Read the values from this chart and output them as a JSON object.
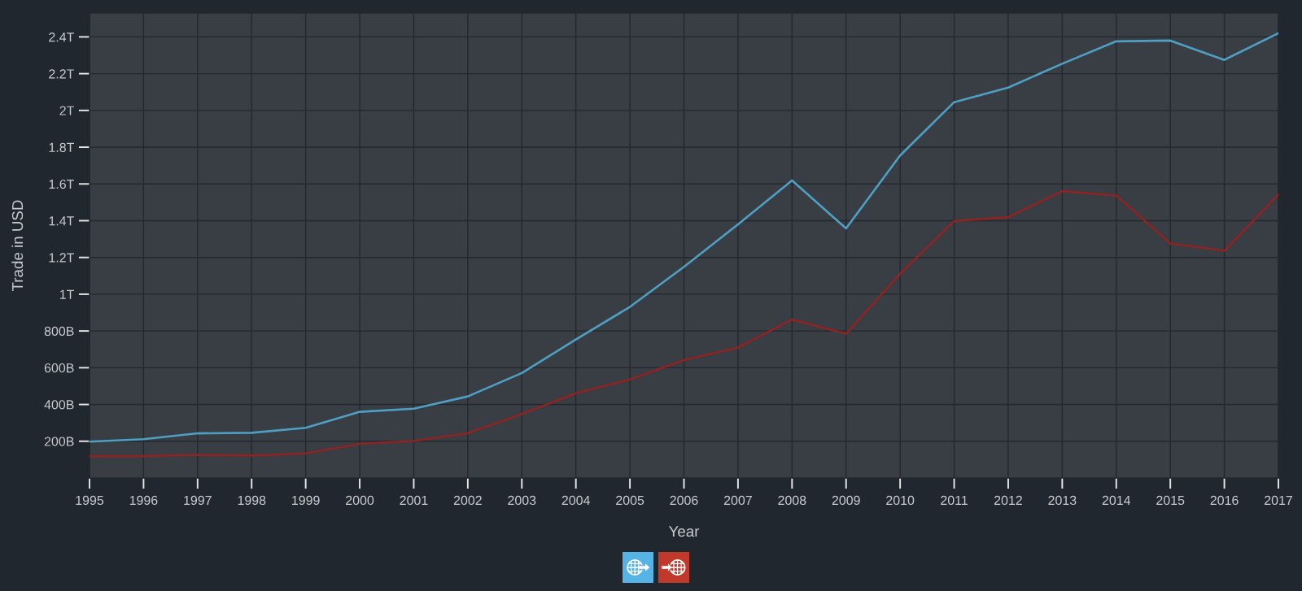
{
  "chart_data": {
    "type": "line",
    "xlabel": "Year",
    "ylabel": "Trade in USD",
    "x": [
      1995,
      1996,
      1997,
      1998,
      1999,
      2000,
      2001,
      2002,
      2003,
      2004,
      2005,
      2006,
      2007,
      2008,
      2009,
      2010,
      2011,
      2012,
      2013,
      2014,
      2015,
      2016,
      2017
    ],
    "series": [
      {
        "color": "#4f9fc2",
        "values": [
          198000000000,
          211000000000,
          243000000000,
          246000000000,
          273000000000,
          360000000000,
          377000000000,
          444000000000,
          571000000000,
          754000000000,
          931000000000,
          1149000000000,
          1380000000000,
          1619000000000,
          1358000000000,
          1755000000000,
          2045000000000,
          2124000000000,
          2254000000000,
          2376000000000,
          2380000000000,
          2275000000000,
          2420000000000
        ]
      },
      {
        "color": "#8c2424",
        "values": [
          119000000000,
          119000000000,
          126000000000,
          122000000000,
          134000000000,
          186000000000,
          201000000000,
          243000000000,
          348000000000,
          461000000000,
          536000000000,
          641000000000,
          710000000000,
          862000000000,
          785000000000,
          1111000000000,
          1398000000000,
          1419000000000,
          1561000000000,
          1537000000000,
          1276000000000,
          1236000000000,
          1542000000000
        ]
      }
    ],
    "xlim": [
      1995,
      2017
    ],
    "xticks": [
      1995,
      1996,
      1997,
      1998,
      1999,
      2000,
      2001,
      2002,
      2003,
      2004,
      2005,
      2006,
      2007,
      2008,
      2009,
      2010,
      2011,
      2012,
      2013,
      2014,
      2015,
      2016,
      2017
    ],
    "ylim": [
      0,
      2530000000000
    ],
    "yticks": [
      {
        "value": 200000000000,
        "label": "200B"
      },
      {
        "value": 400000000000,
        "label": "400B"
      },
      {
        "value": 600000000000,
        "label": "600B"
      },
      {
        "value": 800000000000,
        "label": "800B"
      },
      {
        "value": 1000000000000,
        "label": "1T"
      },
      {
        "value": 1200000000000,
        "label": "1.2T"
      },
      {
        "value": 1400000000000,
        "label": "1.4T"
      },
      {
        "value": 1600000000000,
        "label": "1.6T"
      },
      {
        "value": 1800000000000,
        "label": "1.8T"
      },
      {
        "value": 2000000000000,
        "label": "2T"
      },
      {
        "value": 2200000000000,
        "label": "2.2T"
      },
      {
        "value": 2400000000000,
        "label": "2.4T"
      }
    ],
    "grid": true,
    "marker": "none",
    "line_style": "solid"
  }
}
